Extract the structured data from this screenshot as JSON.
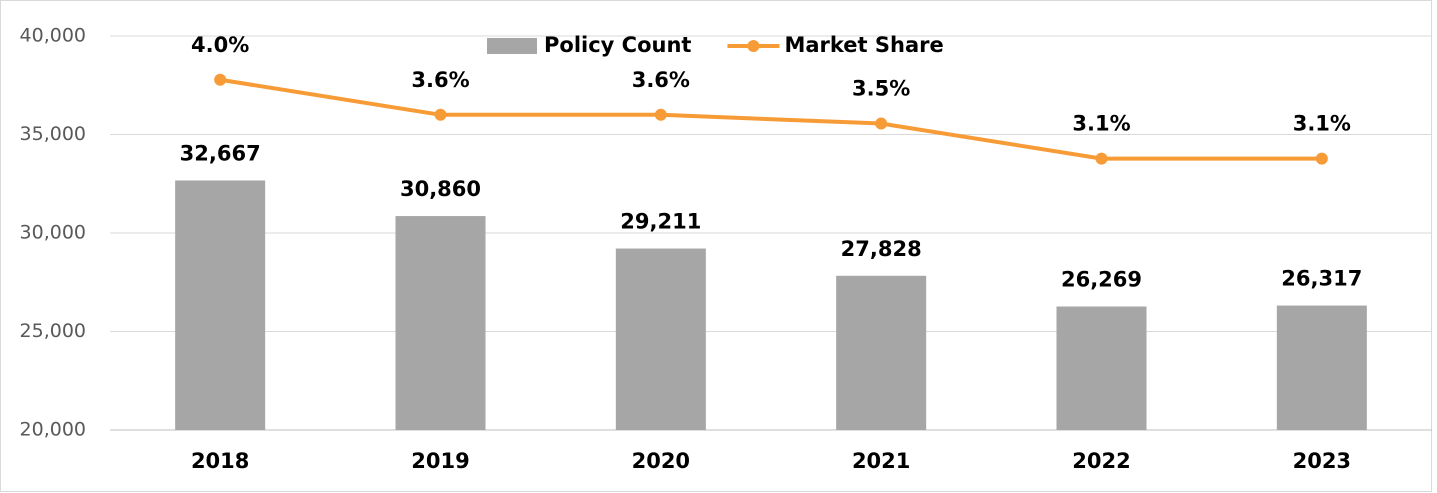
{
  "chart_data": {
    "type": "bar",
    "categories": [
      "2018",
      "2019",
      "2020",
      "2021",
      "2022",
      "2023"
    ],
    "series": [
      {
        "name": "Policy Count",
        "type": "bar",
        "color": "#a6a6a6",
        "values": [
          32667,
          30860,
          29211,
          27828,
          26269,
          26317
        ],
        "value_labels": [
          "32,667",
          "30,860",
          "29,211",
          "27,828",
          "26,269",
          "26,317"
        ]
      },
      {
        "name": "Market Share",
        "type": "line",
        "axis": "y2",
        "color": "#f79b37",
        "values": [
          4.0,
          3.6,
          3.6,
          3.5,
          3.1,
          3.1
        ],
        "value_labels": [
          "4.0%",
          "3.6%",
          "3.6%",
          "3.5%",
          "3.1%",
          "3.1%"
        ]
      }
    ],
    "ylim": [
      20000,
      40000
    ],
    "yticks": [
      {
        "value": 20000,
        "label": "20,000"
      },
      {
        "value": 25000,
        "label": "25,000"
      },
      {
        "value": 30000,
        "label": "30,000"
      },
      {
        "value": 35000,
        "label": "35,000"
      },
      {
        "value": 40000,
        "label": "40,000"
      }
    ],
    "y2lim": [
      0,
      4.5
    ],
    "grid": true,
    "legend": "top"
  }
}
